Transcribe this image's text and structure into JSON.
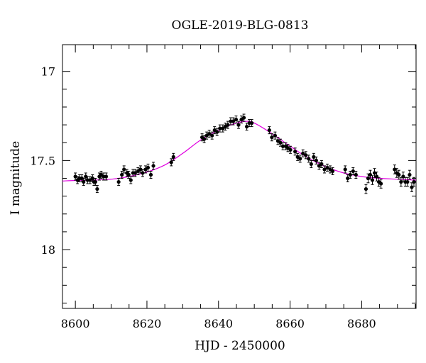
{
  "chart_data": {
    "type": "scatter",
    "title": "OGLE-2019-BLG-0813",
    "xlabel": "HJD - 2450000",
    "ylabel": "I magnitude",
    "xlim": [
      8596.4,
      8695.2
    ],
    "ylim": [
      18.33,
      16.85
    ],
    "y_inverted": true,
    "x_ticks": [
      8600,
      8620,
      8640,
      8660,
      8680
    ],
    "y_ticks": [
      17,
      17.5,
      18
    ],
    "grid": false,
    "colors": {
      "points": "#000000",
      "model": "#e000e0"
    },
    "observations": {
      "x": [
        8600.0,
        8600.6,
        8601.2,
        8601.8,
        8602.3,
        8602.9,
        8603.4,
        8604.1,
        8604.8,
        8605.2,
        8605.6,
        8606.1,
        8606.7,
        8607.2,
        8607.9,
        8608.6,
        8612.1,
        8613.0,
        8613.6,
        8614.4,
        8614.9,
        8615.5,
        8616.1,
        8616.7,
        8617.5,
        8618.2,
        8618.8,
        8619.6,
        8620.3,
        8621.1,
        8621.8,
        8626.8,
        8627.4,
        8635.4,
        8636.0,
        8636.7,
        8637.4,
        8638.2,
        8638.9,
        8639.6,
        8640.4,
        8641.2,
        8641.9,
        8642.6,
        8643.4,
        8644.1,
        8644.9,
        8645.6,
        8646.4,
        8647.1,
        8647.9,
        8648.6,
        8649.3,
        8654.2,
        8654.9,
        8655.8,
        8656.6,
        8657.3,
        8658.0,
        8658.8,
        8659.4,
        8660.1,
        8661.4,
        8662.1,
        8662.8,
        8663.6,
        8664.4,
        8665.2,
        8665.9,
        8666.6,
        8667.3,
        8668.1,
        8668.8,
        8669.6,
        8670.4,
        8671.2,
        8671.9,
        8675.4,
        8676.1,
        8676.8,
        8677.6,
        8678.4,
        8681.2,
        8681.8,
        8682.4,
        8683.0,
        8683.6,
        8684.2,
        8684.8,
        8685.4,
        8689.2,
        8689.8,
        8690.4,
        8691.0,
        8691.6,
        8692.2,
        8692.8,
        8693.4,
        8694.0,
        8694.6
      ],
      "y": [
        17.59,
        17.61,
        17.6,
        17.6,
        17.62,
        17.59,
        17.61,
        17.61,
        17.6,
        17.62,
        17.62,
        17.66,
        17.59,
        17.58,
        17.59,
        17.59,
        17.62,
        17.58,
        17.55,
        17.57,
        17.58,
        17.61,
        17.57,
        17.57,
        17.56,
        17.55,
        17.57,
        17.55,
        17.54,
        17.58,
        17.53,
        17.51,
        17.48,
        17.37,
        17.38,
        17.36,
        17.35,
        17.36,
        17.33,
        17.34,
        17.32,
        17.32,
        17.31,
        17.3,
        17.28,
        17.28,
        17.27,
        17.3,
        17.27,
        17.26,
        17.31,
        17.29,
        17.29,
        17.33,
        17.37,
        17.36,
        17.39,
        17.4,
        17.42,
        17.42,
        17.43,
        17.44,
        17.45,
        17.48,
        17.49,
        17.46,
        17.47,
        17.49,
        17.52,
        17.48,
        17.5,
        17.53,
        17.52,
        17.55,
        17.54,
        17.55,
        17.56,
        17.55,
        17.6,
        17.58,
        17.56,
        17.58,
        17.66,
        17.6,
        17.58,
        17.61,
        17.57,
        17.59,
        17.62,
        17.63,
        17.55,
        17.57,
        17.58,
        17.62,
        17.59,
        17.62,
        17.62,
        17.58,
        17.65,
        17.62
      ],
      "err": [
        0.02,
        0.02,
        0.02,
        0.02,
        0.02,
        0.02,
        0.02,
        0.02,
        0.02,
        0.02,
        0.02,
        0.02,
        0.02,
        0.02,
        0.02,
        0.02,
        0.02,
        0.02,
        0.02,
        0.02,
        0.02,
        0.02,
        0.02,
        0.02,
        0.02,
        0.02,
        0.02,
        0.02,
        0.02,
        0.02,
        0.02,
        0.02,
        0.02,
        0.02,
        0.02,
        0.02,
        0.02,
        0.02,
        0.02,
        0.02,
        0.02,
        0.02,
        0.02,
        0.02,
        0.02,
        0.02,
        0.02,
        0.02,
        0.02,
        0.02,
        0.02,
        0.02,
        0.02,
        0.02,
        0.02,
        0.02,
        0.02,
        0.02,
        0.02,
        0.02,
        0.02,
        0.02,
        0.02,
        0.02,
        0.02,
        0.02,
        0.02,
        0.02,
        0.02,
        0.02,
        0.02,
        0.02,
        0.02,
        0.02,
        0.02,
        0.02,
        0.02,
        0.02,
        0.02,
        0.02,
        0.02,
        0.02,
        0.025,
        0.025,
        0.025,
        0.025,
        0.025,
        0.025,
        0.025,
        0.025,
        0.025,
        0.025,
        0.025,
        0.025,
        0.025,
        0.025,
        0.025,
        0.025,
        0.025,
        0.025
      ]
    },
    "model": {
      "x": [
        8596.4,
        8600,
        8605,
        8610,
        8615,
        8620,
        8625,
        8630,
        8635,
        8640,
        8645,
        8648,
        8650,
        8655,
        8660,
        8665,
        8670,
        8675,
        8680,
        8685,
        8690,
        8695.2
      ],
      "y": [
        17.615,
        17.612,
        17.61,
        17.605,
        17.59,
        17.565,
        17.525,
        17.46,
        17.385,
        17.33,
        17.29,
        17.28,
        17.29,
        17.35,
        17.42,
        17.485,
        17.535,
        17.57,
        17.59,
        17.6,
        17.605,
        17.61
      ]
    }
  }
}
